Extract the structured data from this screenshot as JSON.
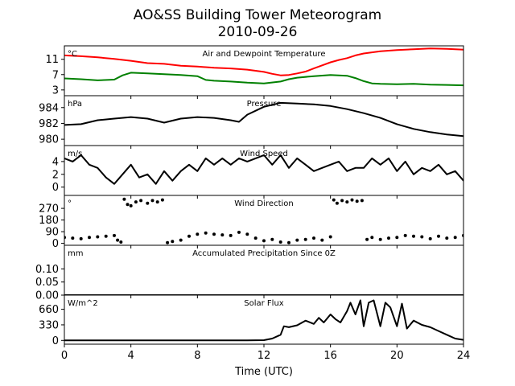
{
  "title": "AO&SS Building Tower Meteorogram",
  "subtitle": "2010-09-26",
  "chart_data": {
    "type": "line",
    "xlabel": "Time (UTC)",
    "xlim": [
      0,
      24
    ],
    "x_ticks": [
      0,
      4,
      8,
      12,
      16,
      20,
      24
    ],
    "x_tick_labels": [
      "0",
      "4",
      "8",
      "12",
      "16",
      "20",
      "24"
    ],
    "panels": [
      {
        "id": "temp",
        "title": "Air and Dewpoint Temperature",
        "unit": "°C",
        "ylim": [
          1.5,
          14.5
        ],
        "y_ticks": [
          3,
          7,
          11
        ],
        "y_tick_labels": [
          "3",
          "7",
          "11"
        ],
        "style": "line",
        "series": [
          {
            "name": "",
            "color": "#ff0000",
            "x": [
              0,
              1,
              2,
              3,
              4,
              5,
              6,
              7,
              8,
              9,
              10,
              11,
              12,
              12.5,
              13,
              13.5,
              14,
              14.5,
              15,
              15.5,
              16,
              16.5,
              17,
              17.5,
              18,
              18.5,
              19,
              20,
              21,
              22,
              23,
              24
            ],
            "y": [
              12,
              11.8,
              11.5,
              11.1,
              10.6,
              10,
              9.8,
              9.3,
              9.1,
              8.8,
              8.6,
              8.3,
              7.7,
              7.2,
              6.8,
              6.9,
              7.3,
              7.8,
              8.6,
              9.4,
              10.2,
              10.8,
              11.3,
              12,
              12.5,
              12.8,
              13.1,
              13.4,
              13.6,
              13.8,
              13.7,
              13.5
            ]
          },
          {
            "name": "",
            "color": "#008000",
            "x": [
              0,
              1,
              2,
              3,
              3.5,
              4,
              5,
              6,
              7,
              8,
              8.5,
              9,
              10,
              11,
              12,
              13,
              13.5,
              14,
              15,
              16,
              17,
              17.5,
              18,
              18.5,
              19,
              20,
              21,
              22,
              23,
              24
            ],
            "y": [
              6,
              5.8,
              5.5,
              5.7,
              6.8,
              7.5,
              7.3,
              7.1,
              6.9,
              6.6,
              5.6,
              5.4,
              5.2,
              4.9,
              4.7,
              5.2,
              5.8,
              6.2,
              6.6,
              6.9,
              6.7,
              6.1,
              5.3,
              4.7,
              4.6,
              4.5,
              4.6,
              4.4,
              4.3,
              4.2
            ]
          }
        ]
      },
      {
        "id": "pressure",
        "title": "Pressure",
        "unit": "hPa",
        "ylim": [
          979.2,
          985.5
        ],
        "y_ticks": [
          980,
          982,
          984
        ],
        "y_tick_labels": [
          "980",
          "982",
          "984"
        ],
        "style": "line",
        "series": [
          {
            "name": "",
            "color": "#000000",
            "x": [
              0,
              1,
              2,
              3,
              4,
              5,
              6,
              7,
              8,
              9,
              10,
              10.5,
              11,
              12,
              13,
              14,
              15,
              16,
              17,
              18,
              19,
              20,
              21,
              22,
              23,
              24
            ],
            "y": [
              981.8,
              981.9,
              982.4,
              982.6,
              982.8,
              982.6,
              982.1,
              982.6,
              982.8,
              982.7,
              982.4,
              982.2,
              983.1,
              984.1,
              984.6,
              984.5,
              984.4,
              984.2,
              983.8,
              983.3,
              982.7,
              981.9,
              981.3,
              980.9,
              980.6,
              980.4
            ]
          }
        ]
      },
      {
        "id": "wind_speed",
        "title": "Wind Speed",
        "unit": "m/s",
        "ylim": [
          -1.3,
          6.5
        ],
        "y_ticks": [
          0,
          2,
          4
        ],
        "y_tick_labels": [
          "0",
          "2",
          "4"
        ],
        "style": "line",
        "series": [
          {
            "name": "",
            "color": "#000000",
            "x": [
              0,
              0.5,
              1,
              1.5,
              2,
              2.5,
              3,
              3.5,
              4,
              4.5,
              5,
              5.5,
              6,
              6.5,
              7,
              7.5,
              8,
              8.5,
              9,
              9.5,
              10,
              10.5,
              11,
              11.5,
              12,
              12.5,
              13,
              13.5,
              14,
              14.5,
              15,
              15.5,
              16,
              16.5,
              17,
              17.5,
              18,
              18.5,
              19,
              19.5,
              20,
              20.5,
              21,
              21.5,
              22,
              22.5,
              23,
              23.5,
              24
            ],
            "y": [
              4.5,
              4,
              5,
              3.5,
              3,
              1.5,
              0.5,
              2,
              3.5,
              1.5,
              2,
              0.5,
              2.5,
              1,
              2.5,
              3.5,
              2.5,
              4.5,
              3.5,
              4.5,
              3.5,
              4.5,
              4,
              4.5,
              5,
              3.5,
              5,
              3,
              4.5,
              3.5,
              2.5,
              3,
              3.5,
              4,
              2.5,
              3,
              3,
              4.5,
              3.5,
              4.5,
              2.5,
              4,
              2,
              3,
              2.5,
              3.5,
              2,
              2.5,
              1
            ]
          }
        ]
      },
      {
        "id": "wind_dir",
        "title": "Wind Direction",
        "unit": "°",
        "ylim": [
          -15,
          370
        ],
        "y_ticks": [
          0,
          90,
          180,
          270
        ],
        "y_tick_labels": [
          "0",
          "90",
          "180",
          "270"
        ],
        "style": "dots",
        "series": [
          {
            "name": "",
            "color": "#000000",
            "x": [
              0,
              0.5,
              1,
              1.5,
              2,
              2.5,
              3,
              3.2,
              3.4,
              3.6,
              3.8,
              4,
              4.3,
              4.6,
              5,
              5.3,
              5.6,
              5.9,
              6.2,
              6.5,
              7,
              7.5,
              8,
              8.5,
              9,
              9.5,
              10,
              10.5,
              11,
              11.5,
              12,
              12.5,
              13,
              13.5,
              14,
              14.5,
              15,
              15.5,
              16,
              16.2,
              16.4,
              16.7,
              17,
              17.3,
              17.6,
              17.9,
              18.2,
              18.5,
              19,
              19.5,
              20,
              20.5,
              21,
              21.5,
              22,
              22.5,
              23,
              23.5,
              24
            ],
            "y": [
              45,
              40,
              35,
              45,
              50,
              55,
              60,
              25,
              10,
              340,
              300,
              290,
              320,
              330,
              310,
              330,
              320,
              335,
              5,
              15,
              25,
              55,
              70,
              80,
              70,
              65,
              60,
              85,
              70,
              40,
              20,
              30,
              10,
              5,
              25,
              30,
              40,
              25,
              50,
              335,
              310,
              330,
              320,
              335,
              325,
              330,
              30,
              45,
              30,
              40,
              45,
              60,
              55,
              50,
              35,
              55,
              40,
              45,
              60
            ]
          }
        ]
      },
      {
        "id": "precip",
        "title": "Accumulated Precipitation Since 0Z",
        "unit": "mm",
        "ylim": [
          0,
          0.19
        ],
        "y_ticks": [
          0,
          0.05,
          0.1
        ],
        "y_tick_labels": [
          "0.00",
          "0.05",
          "0.10"
        ],
        "style": "line",
        "series": [
          {
            "name": "",
            "color": "#000000",
            "x": [
              0,
              24
            ],
            "y": [
              0,
              0
            ]
          }
        ]
      },
      {
        "id": "solar",
        "title": "Solar Flux",
        "unit": "W/m^2",
        "ylim": [
          -80,
          960
        ],
        "y_ticks": [
          0,
          330,
          660
        ],
        "y_tick_labels": [
          "0",
          "330",
          "660"
        ],
        "style": "line",
        "series": [
          {
            "name": "",
            "color": "#000000",
            "x": [
              0,
              6,
              11,
              12,
              12.5,
              13,
              13.2,
              13.5,
              14,
              14.5,
              15,
              15.3,
              15.6,
              16,
              16.3,
              16.6,
              17,
              17.2,
              17.5,
              17.8,
              18,
              18.3,
              18.6,
              19,
              19.3,
              19.6,
              20,
              20.3,
              20.6,
              21,
              21.5,
              22,
              22.5,
              23,
              23.5,
              24
            ],
            "y": [
              0,
              0,
              0,
              5,
              40,
              120,
              300,
              280,
              320,
              420,
              350,
              480,
              380,
              550,
              450,
              380,
              620,
              800,
              550,
              850,
              300,
              800,
              850,
              300,
              800,
              700,
              300,
              780,
              250,
              420,
              330,
              280,
              200,
              120,
              40,
              10
            ]
          }
        ]
      }
    ]
  }
}
